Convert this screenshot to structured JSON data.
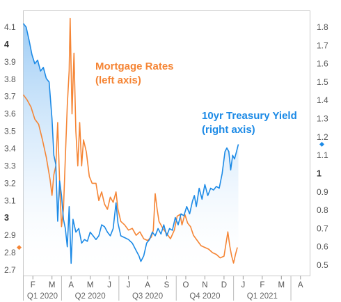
{
  "chart_data": {
    "type": "line",
    "left_axis": {
      "ylim": [
        2.7,
        4.15
      ],
      "ticks": [
        "4.1",
        "4",
        "3.9",
        "3.8",
        "3.7",
        "3.6",
        "3.5",
        "3.4",
        "3.3",
        "3.2",
        "3.1",
        "3",
        "2.9",
        "2.8",
        "2.7"
      ],
      "major_ticks": [
        "4",
        "3"
      ]
    },
    "right_axis": {
      "ylim": [
        0.45,
        1.85
      ],
      "ticks": [
        "1.8",
        "1.7",
        "1.6",
        "1.5",
        "1.4",
        "1.3",
        "1.2",
        "1.1",
        "1",
        "0.9",
        "0.8",
        "0.7",
        "0.6",
        "0.5"
      ],
      "major_ticks": [
        "1"
      ]
    },
    "x_months": [
      "F",
      "M",
      "A",
      "M",
      "J",
      "J",
      "A",
      "S",
      "O",
      "N",
      "D",
      "J",
      "F",
      "M",
      "A"
    ],
    "x_quarters": [
      "Q1 2020",
      "Q2 2020",
      "Q3 2020",
      "Q4 2020",
      "Q1 2021"
    ],
    "x_range_months": [
      0,
      15
    ],
    "annotations": [
      {
        "text": "Mortgage Rates",
        "series": "mortgage"
      },
      {
        "text": "(left axis)",
        "series": "mortgage"
      },
      {
        "text": "10yr Treasury Yield",
        "series": "treasury"
      },
      {
        "text": "(right axis)",
        "series": "treasury"
      }
    ],
    "series": [
      {
        "name": "Mortgage Rates",
        "axis": "left",
        "color": "#F58535",
        "last_value": 2.83,
        "points": [
          [
            0,
            3.71
          ],
          [
            0.2,
            3.68
          ],
          [
            0.4,
            3.64
          ],
          [
            0.6,
            3.57
          ],
          [
            0.8,
            3.54
          ],
          [
            1.0,
            3.45
          ],
          [
            1.2,
            3.35
          ],
          [
            1.4,
            3.22
          ],
          [
            1.5,
            3.13
          ],
          [
            1.6,
            3.25
          ],
          [
            1.7,
            3.3
          ],
          [
            1.8,
            3.55
          ],
          [
            1.9,
            3.2
          ],
          [
            2.0,
            2.95
          ],
          [
            2.1,
            3.05
          ],
          [
            2.2,
            3.35
          ],
          [
            2.3,
            3.65
          ],
          [
            2.4,
            3.85
          ],
          [
            2.45,
            4.15
          ],
          [
            2.55,
            3.6
          ],
          [
            2.65,
            3.95
          ],
          [
            2.75,
            3.5
          ],
          [
            2.85,
            3.3
          ],
          [
            2.95,
            3.55
          ],
          [
            3.05,
            3.3
          ],
          [
            3.15,
            3.45
          ],
          [
            3.3,
            3.38
          ],
          [
            3.45,
            3.24
          ],
          [
            3.6,
            3.2
          ],
          [
            3.8,
            3.2
          ],
          [
            3.95,
            3.1
          ],
          [
            4.1,
            3.15
          ],
          [
            4.25,
            3.08
          ],
          [
            4.4,
            3.05
          ],
          [
            4.55,
            3.12
          ],
          [
            4.7,
            3.09
          ],
          [
            4.85,
            3.15
          ],
          [
            4.95,
            3.05
          ],
          [
            5.1,
            2.98
          ],
          [
            5.3,
            2.96
          ],
          [
            5.5,
            2.93
          ],
          [
            5.7,
            2.94
          ],
          [
            5.9,
            2.9
          ],
          [
            6.1,
            2.92
          ],
          [
            6.3,
            2.88
          ],
          [
            6.5,
            2.87
          ],
          [
            6.7,
            2.89
          ],
          [
            6.8,
            2.93
          ],
          [
            6.9,
            3.14
          ],
          [
            7.0,
            3.05
          ],
          [
            7.1,
            2.98
          ],
          [
            7.3,
            2.94
          ],
          [
            7.5,
            2.91
          ],
          [
            7.7,
            2.88
          ],
          [
            7.9,
            2.93
          ],
          [
            8.05,
            3.01
          ],
          [
            8.2,
            3.02
          ],
          [
            8.3,
            2.96
          ],
          [
            8.45,
            3.02
          ],
          [
            8.6,
            2.97
          ],
          [
            8.75,
            2.95
          ],
          [
            8.9,
            2.9
          ],
          [
            9.1,
            2.87
          ],
          [
            9.3,
            2.84
          ],
          [
            9.5,
            2.83
          ],
          [
            9.7,
            2.82
          ],
          [
            9.9,
            2.8
          ],
          [
            10.1,
            2.79
          ],
          [
            10.3,
            2.77
          ],
          [
            10.5,
            2.78
          ],
          [
            10.7,
            2.92
          ],
          [
            10.8,
            2.84
          ],
          [
            10.9,
            2.78
          ],
          [
            11.0,
            2.74
          ],
          [
            11.1,
            2.79
          ],
          [
            11.2,
            2.83
          ]
        ]
      },
      {
        "name": "10yr Treasury Yield",
        "axis": "right",
        "color": "#1C8AE6",
        "last_value": 1.16,
        "points": [
          [
            0,
            1.82
          ],
          [
            0.15,
            1.8
          ],
          [
            0.3,
            1.73
          ],
          [
            0.45,
            1.65
          ],
          [
            0.6,
            1.6
          ],
          [
            0.75,
            1.62
          ],
          [
            0.9,
            1.56
          ],
          [
            1.05,
            1.58
          ],
          [
            1.2,
            1.52
          ],
          [
            1.35,
            1.5
          ],
          [
            1.5,
            1.3
          ],
          [
            1.6,
            1.1
          ],
          [
            1.7,
            1.05
          ],
          [
            1.8,
            0.74
          ],
          [
            1.9,
            0.96
          ],
          [
            2.0,
            0.88
          ],
          [
            2.1,
            0.75
          ],
          [
            2.2,
            0.7
          ],
          [
            2.3,
            0.6
          ],
          [
            2.4,
            0.82
          ],
          [
            2.5,
            0.51
          ],
          [
            2.6,
            0.75
          ],
          [
            2.75,
            0.68
          ],
          [
            2.9,
            0.7
          ],
          [
            3.05,
            0.62
          ],
          [
            3.2,
            0.64
          ],
          [
            3.35,
            0.63
          ],
          [
            3.5,
            0.68
          ],
          [
            3.65,
            0.66
          ],
          [
            3.8,
            0.64
          ],
          [
            3.95,
            0.66
          ],
          [
            4.1,
            0.72
          ],
          [
            4.25,
            0.71
          ],
          [
            4.4,
            0.68
          ],
          [
            4.55,
            0.66
          ],
          [
            4.7,
            0.7
          ],
          [
            4.85,
            0.84
          ],
          [
            4.95,
            0.73
          ],
          [
            5.1,
            0.66
          ],
          [
            5.3,
            0.65
          ],
          [
            5.5,
            0.64
          ],
          [
            5.7,
            0.62
          ],
          [
            5.9,
            0.58
          ],
          [
            6.05,
            0.55
          ],
          [
            6.15,
            0.52
          ],
          [
            6.3,
            0.55
          ],
          [
            6.45,
            0.62
          ],
          [
            6.6,
            0.64
          ],
          [
            6.75,
            0.68
          ],
          [
            6.9,
            0.66
          ],
          [
            7.05,
            0.7
          ],
          [
            7.2,
            0.67
          ],
          [
            7.35,
            0.72
          ],
          [
            7.5,
            0.66
          ],
          [
            7.65,
            0.7
          ],
          [
            7.8,
            0.69
          ],
          [
            7.95,
            0.76
          ],
          [
            8.1,
            0.72
          ],
          [
            8.25,
            0.78
          ],
          [
            8.4,
            0.77
          ],
          [
            8.55,
            0.82
          ],
          [
            8.7,
            0.78
          ],
          [
            8.85,
            0.85
          ],
          [
            8.95,
            0.88
          ],
          [
            9.05,
            0.82
          ],
          [
            9.2,
            0.92
          ],
          [
            9.35,
            0.86
          ],
          [
            9.5,
            0.94
          ],
          [
            9.65,
            0.88
          ],
          [
            9.8,
            0.92
          ],
          [
            9.95,
            0.91
          ],
          [
            10.1,
            0.93
          ],
          [
            10.25,
            0.92
          ],
          [
            10.4,
            1.0
          ],
          [
            10.55,
            1.12
          ],
          [
            10.65,
            1.14
          ],
          [
            10.75,
            1.12
          ],
          [
            10.85,
            1.02
          ],
          [
            10.95,
            1.1
          ],
          [
            11.05,
            1.08
          ],
          [
            11.15,
            1.12
          ],
          [
            11.25,
            1.16
          ]
        ]
      }
    ]
  }
}
